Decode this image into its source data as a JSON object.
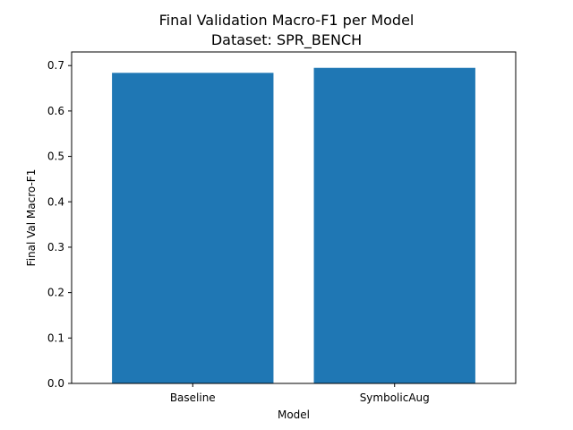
{
  "chart_data": {
    "type": "bar",
    "title": "Final Validation Macro-F1 per Model",
    "subtitle": "Dataset: SPR_BENCH",
    "xlabel": "Model",
    "ylabel": "Final Val Macro-F1",
    "categories": [
      "Baseline",
      "SymbolicAug"
    ],
    "values": [
      0.684,
      0.695
    ],
    "ylim": [
      0,
      0.73
    ],
    "yticks": [
      "0.0",
      "0.1",
      "0.2",
      "0.3",
      "0.4",
      "0.5",
      "0.6",
      "0.7"
    ],
    "bar_color": "#1f77b4",
    "grid": false
  }
}
